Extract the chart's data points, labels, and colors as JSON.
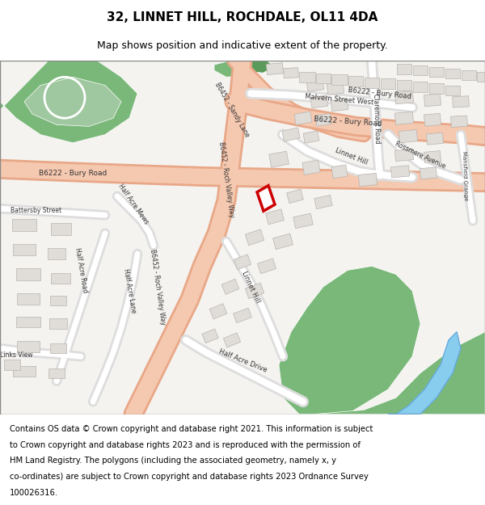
{
  "title": "32, LINNET HILL, ROCHDALE, OL11 4DA",
  "subtitle": "Map shows position and indicative extent of the property.",
  "footer_lines": [
    "Contains OS data © Crown copyright and database right 2021. This information is subject",
    "to Crown copyright and database rights 2023 and is reproduced with the permission of",
    "HM Land Registry. The polygons (including the associated geometry, namely x, y",
    "co-ordinates) are subject to Crown copyright and database rights 2023 Ordnance Survey",
    "100026316."
  ],
  "map_bg": "#f5f3f0",
  "road_color": "#f5c8b0",
  "road_outline": "#e8a888",
  "green_color": "#7ab87a",
  "water_color": "#88ccee",
  "plot_color": "#cc0000",
  "title_fontsize": 11,
  "subtitle_fontsize": 9,
  "footer_fontsize": 7.2
}
